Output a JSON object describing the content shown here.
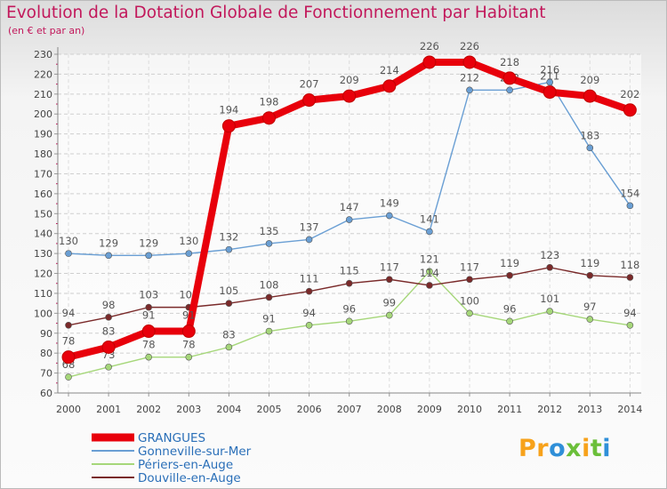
{
  "chart_data": {
    "type": "line",
    "title": "Evolution de la Dotation Globale de Fonctionnement par Habitant",
    "subtitle": "(en € et par an)",
    "xlabel": "",
    "ylabel": "",
    "x": [
      "2000",
      "2001",
      "2002",
      "2003",
      "2004",
      "2005",
      "2006",
      "2007",
      "2008",
      "2009",
      "2010",
      "2011",
      "2012",
      "2013",
      "2014"
    ],
    "ylim": [
      60,
      230
    ],
    "yticks": [
      60,
      70,
      80,
      90,
      100,
      110,
      120,
      130,
      140,
      150,
      160,
      170,
      180,
      190,
      200,
      210,
      220,
      230
    ],
    "grid": true,
    "legend_position": "bottom-left",
    "series": [
      {
        "name": "GRANGUES",
        "color": "#e8000b",
        "values": [
          78,
          83,
          91,
          91,
          194,
          198,
          207,
          209,
          214,
          226,
          226,
          218,
          211,
          209,
          202
        ]
      },
      {
        "name": "Gonneville-sur-Mer",
        "color": "#6a9fd4",
        "values": [
          130,
          129,
          129,
          130,
          132,
          135,
          137,
          147,
          149,
          141,
          212,
          212,
          216,
          183,
          154
        ]
      },
      {
        "name": "Périers-en-Auge",
        "color": "#a6d77a",
        "values": [
          68,
          73,
          78,
          78,
          83,
          91,
          94,
          96,
          99,
          121,
          100,
          96,
          101,
          97,
          94
        ]
      },
      {
        "name": "Douville-en-Auge",
        "color": "#7a2a2a",
        "values": [
          94,
          98,
          103,
          103,
          105,
          108,
          111,
          115,
          117,
          114,
          117,
          119,
          123,
          119,
          118
        ]
      }
    ]
  }
}
